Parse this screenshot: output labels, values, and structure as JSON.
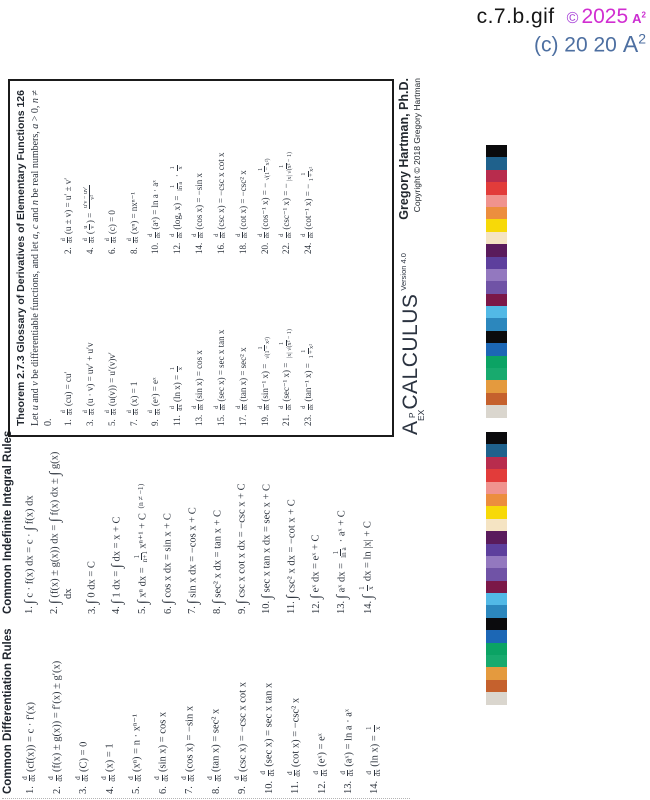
{
  "header": {
    "filename": "c.7.b.gif",
    "copyright_symbol": "©",
    "year": "2025",
    "mark": "A",
    "mark_sup": "2",
    "line2_prefix": "(c) 20 20",
    "line2_mark": "A",
    "line2_sup": "2"
  },
  "sheet": {
    "diff_rules": {
      "title": "Common Differentiation Rules",
      "items": [
        "1. [d/dx](cf(x)) = c · f′(x)",
        "2. [d/dx](f(x) ± g(x)) = f′(x) ± g′(x)",
        "3. [d/dx](C) = 0",
        "4. [d/dx](x) = 1",
        "5. [d/dx](xⁿ) = n · xⁿ⁻¹",
        "6. [d/dx](sin x) = cos x",
        "7. [d/dx](cos x) = −sin x",
        "8. [d/dx](tan x) = sec² x",
        "9. [d/dx](csc x) = −csc x cot x",
        "10. [d/dx](sec x) = sec x tan x",
        "11. [d/dx](cot x) = −csc² x",
        "12. [d/dx](eˣ) = eˣ",
        "13. [d/dx](aˣ) = ln a · aˣ",
        "14. [d/dx](ln x) = [1/x]"
      ]
    },
    "integral_rules": {
      "title": "Common Indefinite Integral Rules",
      "items": [
        "1. ∫ c · f(x) dx = c · ∫ f(x) dx",
        "2. ∫ (f(x) ± g(x)) dx = ∫ f(x) dx ± ∫ g(x) dx",
        "3. ∫ 0 dx = C",
        "4. ∫ 1 dx = ∫ dx = x + C",
        "5. ∫ xⁿ dx = [1/n+1]xⁿ⁺¹ + C {s:(n ≠ −1)}",
        "6. ∫ cos x dx = sin x + C",
        "7. ∫ sin x dx = −cos x + C",
        "8. ∫ sec² x dx = tan x + C",
        "9. ∫ csc x cot x dx = −csc x + C",
        "10. ∫ sec x tan x dx = sec x + C",
        "11. ∫ csc² x dx = −cot x + C",
        "12. ∫ eˣ dx = eˣ + C",
        "13. ∫ aˣ dx = [1/ln a] · aˣ + C",
        "14. ∫ [1/x] dx = ln |x| + C"
      ]
    },
    "theorem": {
      "label": "Theorem 2.7.3",
      "title": "Glossary of Derivatives of Elementary Functions",
      "page_number": "126",
      "intro": "Let {i:u} and {i:v} be differentiable functions, and let {i:a}, {i:c} and {i:n} be real numbers, {i:a} > 0, {i:n} ≠ 0.",
      "items": [
        "1. [d/dx](cu) = cu′",
        "2. [d/dx](u ± v) = u′ ± v′",
        "3. [d/dx](u · v) = uv′ + u′v",
        "4. [d/dx]([u/v]) = [u′v − uv′/v²]",
        "5. [d/dx](u(v)) = u′(v)v′",
        "6. [d/dx](c) = 0",
        "7. [d/dx](x) = 1",
        "8. [d/dx](xⁿ) = nxⁿ⁻¹",
        "9. [d/dx](eˣ) = eˣ",
        "10. [d/dx](aˣ) = ln a · aˣ",
        "11. [d/dx](ln x) = [1/x]",
        "12. [d/dx](logₐ x) = [1/ln a] · [1/x]",
        "13. [d/dx](sin x) = cos x",
        "14. [d/dx](cos x) = −sin x",
        "15. [d/dx](sec x) = sec x tan x",
        "16. [d/dx](csc x) = −csc x cot x",
        "17. [d/dx](tan x) = sec² x",
        "18. [d/dx](cot x) = −csc² x",
        "19. [d/dx](sin⁻¹ x) = [1/√(1 − x²)]",
        "20. [d/dx](cos⁻¹ x) = −[1/√(1 − x²)]",
        "21. [d/dx](sec⁻¹ x) = [1/|x| √(x² − 1)]",
        "22. [d/dx](csc⁻¹ x) = −[1/|x| √(x² − 1)]",
        "23. [d/dx](tan⁻¹ x) = [1/1 + x²]",
        "24. [d/dx](cot⁻¹ x) = −[1/1 + x²]"
      ]
    },
    "logo": {
      "a": "A",
      "p": "P",
      "ex": "EX",
      "name": "CALCULUS",
      "version": "Version 4.0"
    },
    "attribution": {
      "author": "Gregory Hartman, Ph.D.",
      "copyright": "Copyright © 2018 Gregory Hartman"
    }
  },
  "color_bar": {
    "colors": [
      "#0a0a0c",
      "#1f618c",
      "#b82c4d",
      "#e23c3a",
      "#f0938e",
      "#ec8e3e",
      "#f7d908",
      "#f5e4c3",
      "#5a1b5c",
      "#5d3f9d",
      "#9378bf",
      "#7053a6",
      "#7b1848",
      "#52b9e6",
      "#2c87bd",
      "#0b0b0d",
      "#1c67b5",
      "#0ba364",
      "#18aa6e",
      "#e49a3e",
      "#c5612d",
      "#dad6ce"
    ]
  }
}
